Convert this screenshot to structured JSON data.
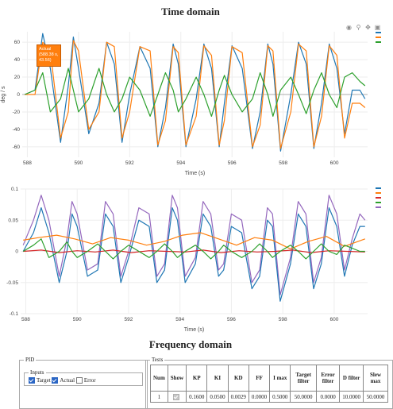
{
  "time_domain": {
    "title": "Time domain"
  },
  "frequency_domain": {
    "title": "Frequency domain"
  },
  "modebar": [
    "camera-icon",
    "zoom-icon",
    "pan-icon",
    "box-select-icon"
  ],
  "colors": {
    "blue": "#1f77b4",
    "orange": "#ff7f0e",
    "green": "#2ca02c",
    "red": "#d62728",
    "purple": "#9467bd"
  },
  "hover": {
    "series": "Actual",
    "x": "(588.38 s,",
    "y": "43.56)"
  },
  "chart_data": [
    {
      "type": "line",
      "title": "Time domain",
      "xlabel": "Time (s)",
      "ylabel": "deg / s",
      "xlim": [
        587.8,
        601.3
      ],
      "ylim": [
        -72,
        72
      ],
      "xticks": [
        "588",
        "590",
        "592",
        "594",
        "596",
        "598",
        "600"
      ],
      "yticks": [
        "60",
        "40",
        "20",
        "0",
        "-20",
        "-40",
        "-60"
      ],
      "series": [
        {
          "color": "#1f77b4",
          "x": [
            587.9,
            588.3,
            588.6,
            588.9,
            589.3,
            589.6,
            589.8,
            590.0,
            590.4,
            590.8,
            591.1,
            591.4,
            591.7,
            592.0,
            592.4,
            592.8,
            593.1,
            593.4,
            593.7,
            593.9,
            594.2,
            594.6,
            594.9,
            595.2,
            595.5,
            595.7,
            596.0,
            596.4,
            596.8,
            597.1,
            597.4,
            597.6,
            597.9,
            598.3,
            598.6,
            598.9,
            599.2,
            599.5,
            599.8,
            600.1,
            600.4,
            600.7,
            601.0,
            601.2
          ],
          "values": [
            0,
            5,
            70,
            30,
            -55,
            10,
            66,
            30,
            -45,
            -10,
            60,
            35,
            -55,
            0,
            55,
            30,
            -60,
            -15,
            58,
            35,
            -60,
            -5,
            58,
            30,
            -60,
            -10,
            56,
            30,
            -62,
            -20,
            58,
            35,
            -65,
            0,
            60,
            35,
            -62,
            -10,
            58,
            30,
            -45,
            5,
            5,
            -5
          ]
        },
        {
          "color": "#ff7f0e",
          "x": [
            587.9,
            588.3,
            588.6,
            588.9,
            589.3,
            589.6,
            589.8,
            590.0,
            590.4,
            590.8,
            591.1,
            591.4,
            591.7,
            592.0,
            592.4,
            592.8,
            593.1,
            593.4,
            593.7,
            593.9,
            594.2,
            594.6,
            594.9,
            595.2,
            595.5,
            595.7,
            596.0,
            596.4,
            596.8,
            597.1,
            597.4,
            597.6,
            597.9,
            598.3,
            598.6,
            598.9,
            599.2,
            599.5,
            599.8,
            600.1,
            600.4,
            600.7,
            601.0,
            601.2
          ],
          "values": [
            0,
            0,
            60,
            50,
            -50,
            -20,
            62,
            50,
            -40,
            -20,
            60,
            55,
            -50,
            -20,
            55,
            50,
            -58,
            -30,
            55,
            48,
            -58,
            -25,
            56,
            45,
            -58,
            -30,
            55,
            48,
            -60,
            -35,
            56,
            50,
            -62,
            -20,
            58,
            50,
            -60,
            -25,
            56,
            45,
            -50,
            -10,
            -10,
            -15
          ]
        },
        {
          "color": "#2ca02c",
          "x": [
            587.9,
            588.3,
            588.6,
            588.9,
            589.3,
            589.6,
            589.8,
            590.0,
            590.4,
            590.8,
            591.1,
            591.4,
            591.7,
            592.0,
            592.4,
            592.8,
            593.1,
            593.4,
            593.7,
            593.9,
            594.2,
            594.6,
            594.9,
            595.2,
            595.5,
            595.7,
            596.0,
            596.4,
            596.8,
            597.1,
            597.4,
            597.6,
            597.9,
            598.3,
            598.6,
            598.9,
            599.2,
            599.5,
            599.8,
            600.1,
            600.4,
            600.7,
            601.0,
            601.2
          ],
          "values": [
            0,
            5,
            25,
            -20,
            -5,
            30,
            5,
            -20,
            -5,
            30,
            0,
            -20,
            -5,
            20,
            5,
            -25,
            0,
            25,
            5,
            -20,
            -5,
            20,
            0,
            -25,
            5,
            22,
            0,
            -20,
            -5,
            25,
            0,
            -25,
            5,
            20,
            0,
            -22,
            5,
            25,
            0,
            -15,
            20,
            25,
            15,
            10
          ]
        }
      ]
    },
    {
      "type": "line",
      "xlabel": "Time (s)",
      "ylabel": "",
      "xlim": [
        587.8,
        601.3
      ],
      "ylim": [
        -0.1,
        0.1
      ],
      "xticks": [
        "588",
        "590",
        "592",
        "594",
        "596",
        "598",
        "600"
      ],
      "yticks": [
        "0.1",
        "0.05",
        "0",
        "-0.05",
        "-0.1"
      ],
      "series": [
        {
          "color": "#9467bd",
          "x": [
            587.9,
            588.3,
            588.6,
            588.9,
            589.3,
            589.6,
            589.8,
            590.0,
            590.4,
            590.8,
            591.1,
            591.4,
            591.7,
            592.0,
            592.4,
            592.8,
            593.1,
            593.4,
            593.7,
            593.9,
            594.2,
            594.6,
            594.9,
            595.2,
            595.5,
            595.7,
            596.0,
            596.4,
            596.8,
            597.1,
            597.4,
            597.6,
            597.9,
            598.3,
            598.6,
            598.9,
            599.2,
            599.5,
            599.8,
            600.1,
            600.4,
            600.7,
            601.0,
            601.2
          ],
          "values": [
            0.01,
            0.05,
            0.09,
            0.05,
            -0.04,
            0.02,
            0.08,
            0.06,
            -0.03,
            -0.02,
            0.08,
            0.06,
            -0.04,
            0.0,
            0.07,
            0.06,
            -0.04,
            -0.02,
            0.09,
            0.07,
            -0.04,
            -0.01,
            0.08,
            0.06,
            -0.03,
            -0.02,
            0.06,
            0.05,
            -0.05,
            -0.03,
            0.07,
            0.06,
            -0.07,
            -0.01,
            0.08,
            0.06,
            -0.05,
            -0.01,
            0.09,
            0.06,
            -0.03,
            0.02,
            0.06,
            0.05
          ]
        },
        {
          "color": "#1f77b4",
          "x": [
            587.9,
            588.3,
            588.6,
            588.9,
            589.3,
            589.6,
            589.8,
            590.0,
            590.4,
            590.8,
            591.1,
            591.4,
            591.7,
            592.0,
            592.4,
            592.8,
            593.1,
            593.4,
            593.7,
            593.9,
            594.2,
            594.6,
            594.9,
            595.2,
            595.5,
            595.7,
            596.0,
            596.4,
            596.8,
            597.1,
            597.4,
            597.6,
            597.9,
            598.3,
            598.6,
            598.9,
            599.2,
            599.5,
            599.8,
            600.1,
            600.4,
            600.7,
            601.0,
            601.2
          ],
          "values": [
            0.0,
            0.03,
            0.07,
            0.03,
            -0.05,
            0.0,
            0.06,
            0.04,
            -0.04,
            -0.03,
            0.06,
            0.04,
            -0.05,
            -0.01,
            0.05,
            0.04,
            -0.05,
            -0.03,
            0.07,
            0.05,
            -0.05,
            -0.02,
            0.06,
            0.04,
            -0.04,
            -0.03,
            0.04,
            0.03,
            -0.06,
            -0.04,
            0.05,
            0.04,
            -0.08,
            -0.02,
            0.06,
            0.04,
            -0.06,
            -0.02,
            0.07,
            0.04,
            -0.04,
            0.01,
            0.04,
            0.04
          ]
        },
        {
          "color": "#ff7f0e",
          "x": [
            587.9,
            588.5,
            589.2,
            589.9,
            590.6,
            591.3,
            592.0,
            592.7,
            593.4,
            594.1,
            594.8,
            595.5,
            596.2,
            596.9,
            597.6,
            598.3,
            599.0,
            599.7,
            600.4,
            601.2
          ],
          "values": [
            0.018,
            0.022,
            0.026,
            0.02,
            0.012,
            0.022,
            0.018,
            0.01,
            0.016,
            0.026,
            0.03,
            0.02,
            0.01,
            0.022,
            0.018,
            0.004,
            0.016,
            0.024,
            0.008,
            0.02
          ]
        },
        {
          "color": "#d62728",
          "x": [
            587.9,
            588.6,
            589.3,
            590.0,
            590.7,
            591.4,
            592.1,
            592.8,
            593.5,
            594.2,
            594.9,
            595.6,
            596.3,
            597.0,
            597.7,
            598.4,
            599.1,
            599.8,
            600.5,
            601.2
          ],
          "values": [
            0.0,
            0.002,
            -0.002,
            0.001,
            -0.001,
            0.002,
            -0.002,
            0.001,
            0.0,
            -0.001,
            0.002,
            -0.002,
            0.001,
            -0.001,
            0.0,
            0.002,
            -0.002,
            0.001,
            0.0,
            -0.001
          ]
        },
        {
          "color": "#2ca02c",
          "x": [
            587.9,
            588.3,
            588.6,
            588.9,
            589.3,
            589.6,
            589.8,
            590.0,
            590.4,
            590.8,
            591.1,
            591.4,
            591.7,
            592.0,
            592.4,
            592.8,
            593.1,
            593.4,
            593.7,
            593.9,
            594.2,
            594.6,
            594.9,
            595.2,
            595.5,
            595.7,
            596.0,
            596.4,
            596.8,
            597.1,
            597.4,
            597.6,
            597.9,
            598.3,
            598.6,
            598.9,
            599.2,
            599.5,
            599.8,
            600.1,
            600.4,
            600.7,
            601.0,
            601.2
          ],
          "values": [
            0.0,
            0.01,
            0.02,
            -0.01,
            0.0,
            0.015,
            0.0,
            -0.01,
            0.0,
            0.012,
            0.0,
            -0.012,
            0.0,
            0.01,
            0.0,
            -0.01,
            0.0,
            0.012,
            0.0,
            -0.01,
            0.0,
            0.01,
            0.0,
            -0.012,
            0.0,
            0.01,
            0.0,
            -0.01,
            0.0,
            0.012,
            0.0,
            -0.01,
            0.0,
            0.01,
            0.0,
            -0.012,
            0.0,
            0.012,
            0.0,
            -0.005,
            0.01,
            0.005,
            0.0,
            0.0
          ]
        }
      ]
    }
  ],
  "pid": {
    "legend": "PID",
    "inputs_legend": "Inputs",
    "options": [
      {
        "label": "Target",
        "checked": true
      },
      {
        "label": "Actual",
        "checked": true
      },
      {
        "label": "Error",
        "checked": false
      }
    ]
  },
  "tests": {
    "legend": "Tests",
    "headers": [
      "Num",
      "Show",
      "KP",
      "KI",
      "KD",
      "FF",
      "I max",
      "Target filter",
      "Error filter",
      "D filter",
      "Slew max"
    ],
    "rows": [
      [
        "1",
        "",
        "0.1600",
        "0.0500",
        "0.0029",
        "0.0000",
        "0.5000",
        "50.0000",
        "0.0000",
        "10.0000",
        "50.0000"
      ]
    ]
  }
}
